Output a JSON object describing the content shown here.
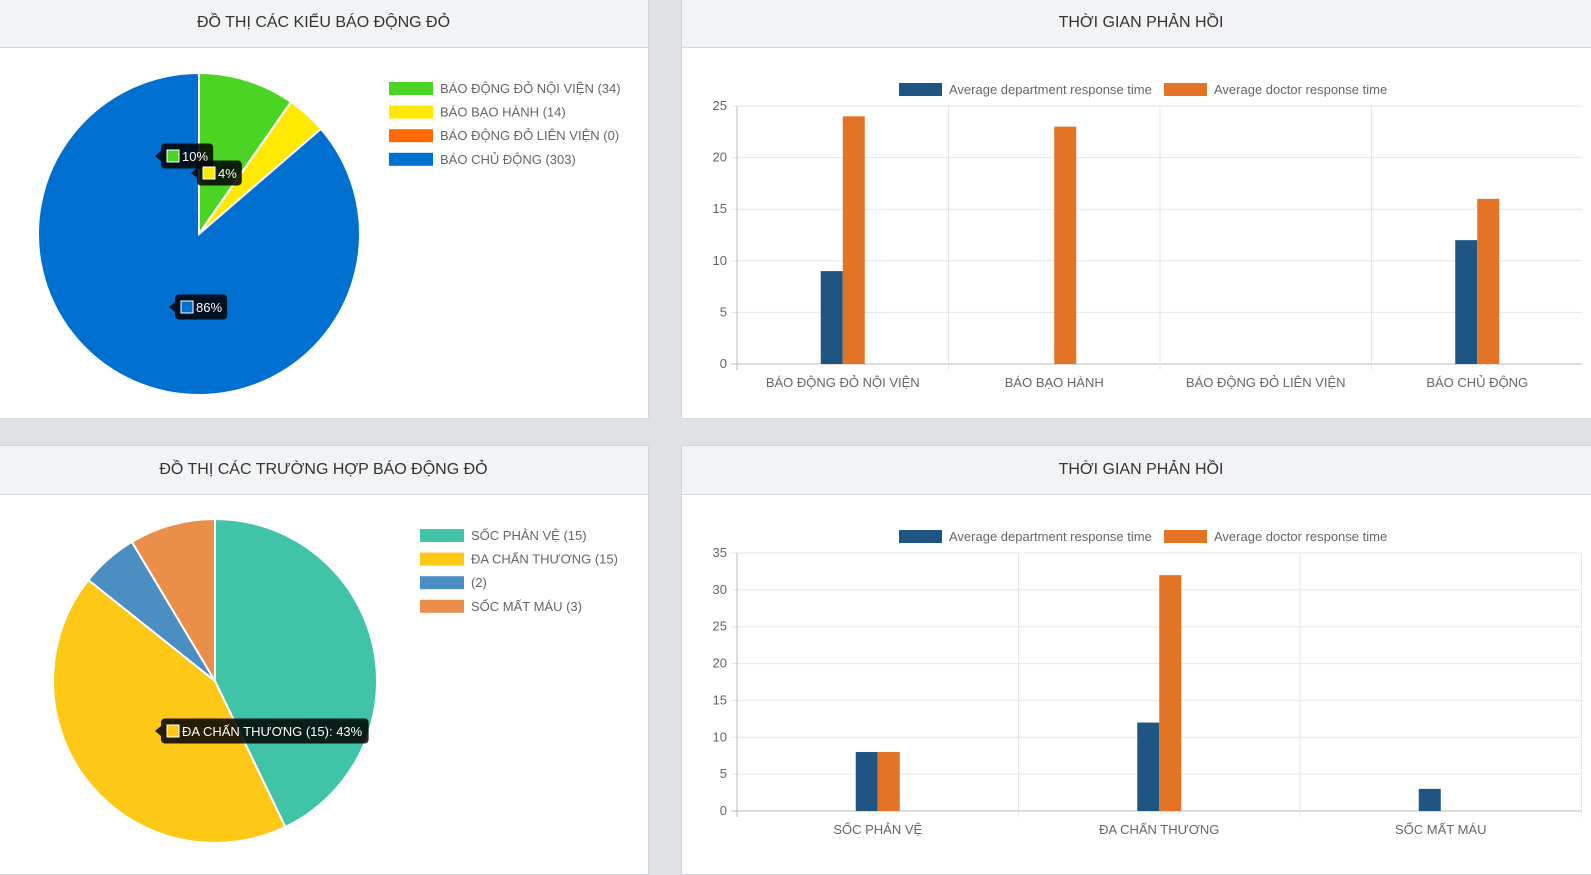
{
  "panels": {
    "top_left_title": "ĐỒ THỊ CÁC KIỂU BÁO ĐỘNG ĐỎ",
    "top_right_title": "THỜI GIAN PHẢN HỒI",
    "bottom_left_title": "ĐỒ THỊ CÁC TRƯỜNG HỢP BÁO ĐỘNG ĐỎ",
    "bottom_right_title": "THỜI GIAN PHẢN HỒI"
  },
  "chart_data": [
    {
      "type": "pie",
      "title": "ĐỒ THỊ CÁC KIỂU BÁO ĐỘNG ĐỎ",
      "labels": [
        "BÁO ĐỘNG ĐỎ NỘI VIỆN",
        "BÁO BẠO HÀNH",
        "BÁO ĐỘNG ĐỎ LIÊN VIỆN",
        "BÁO CHỦ ĐỘNG"
      ],
      "legend": [
        "BÁO ĐỘNG ĐỎ NỘI VIỆN (34)",
        "BÁO BẠO HÀNH (14)",
        "BÁO ĐỘNG ĐỎ LIÊN VIỆN (0)",
        "BÁO CHỦ ĐỘNG (303)"
      ],
      "values": [
        34,
        14,
        0,
        303
      ],
      "colors": [
        "#4cd424",
        "#ffe900",
        "#ff6a00",
        "#0070d0"
      ],
      "tooltips": [
        "10%",
        "4%",
        "",
        "86%"
      ],
      "legend_position": "right"
    },
    {
      "type": "bar",
      "title": "THỜI GIAN PHẢN HỒI",
      "categories": [
        "BÁO ĐỘNG ĐỎ NỘI VIỆN",
        "BÁO BẠO HÀNH",
        "BÁO ĐỘNG ĐỎ LIÊN VIỆN",
        "BÁO CHỦ ĐỘNG"
      ],
      "series": [
        {
          "name": "Average department response time",
          "color": "#1f5583",
          "values": [
            9,
            0,
            0,
            12
          ]
        },
        {
          "name": "Average doctor response time",
          "color": "#e37425",
          "values": [
            24,
            23,
            0,
            16
          ]
        }
      ],
      "ylim": [
        0,
        25
      ],
      "yticks": [
        0,
        5,
        10,
        15,
        20,
        25
      ],
      "grid": true,
      "legend_position": "top"
    },
    {
      "type": "pie",
      "title": "ĐỒ THỊ CÁC TRƯỜNG HỢP BÁO ĐỘNG ĐỎ",
      "labels": [
        "SỐC PHẢN VỆ",
        "ĐA CHẤN THƯƠNG",
        "",
        "SỐC MẤT MÁU"
      ],
      "legend": [
        "SỐC PHẢN VỆ (15)",
        "ĐA CHẤN THƯƠNG (15)",
        " (2)",
        "SỐC MẤT MÁU (3)"
      ],
      "values": [
        15,
        15,
        2,
        3
      ],
      "colors": [
        "#40c3a6",
        "#fec817",
        "#4b8ec1",
        "#ea8f4a"
      ],
      "tooltips": [
        "",
        "ĐA CHẤN THƯƠNG (15): 43%",
        "",
        ""
      ],
      "legend_position": "right"
    },
    {
      "type": "bar",
      "title": "THỜI GIAN PHẢN HỒI",
      "categories": [
        "SỐC PHẢN VỆ",
        "ĐA CHẤN THƯƠNG",
        "SỐC MẤT MÁU"
      ],
      "series": [
        {
          "name": "Average department response time",
          "color": "#1f5583",
          "values": [
            8,
            12,
            3
          ]
        },
        {
          "name": "Average doctor response time",
          "color": "#e37425",
          "values": [
            8,
            32,
            0
          ]
        }
      ],
      "ylim": [
        0,
        35
      ],
      "yticks": [
        0,
        5,
        10,
        15,
        20,
        25,
        30,
        35
      ],
      "grid": true,
      "legend_position": "top"
    }
  ]
}
